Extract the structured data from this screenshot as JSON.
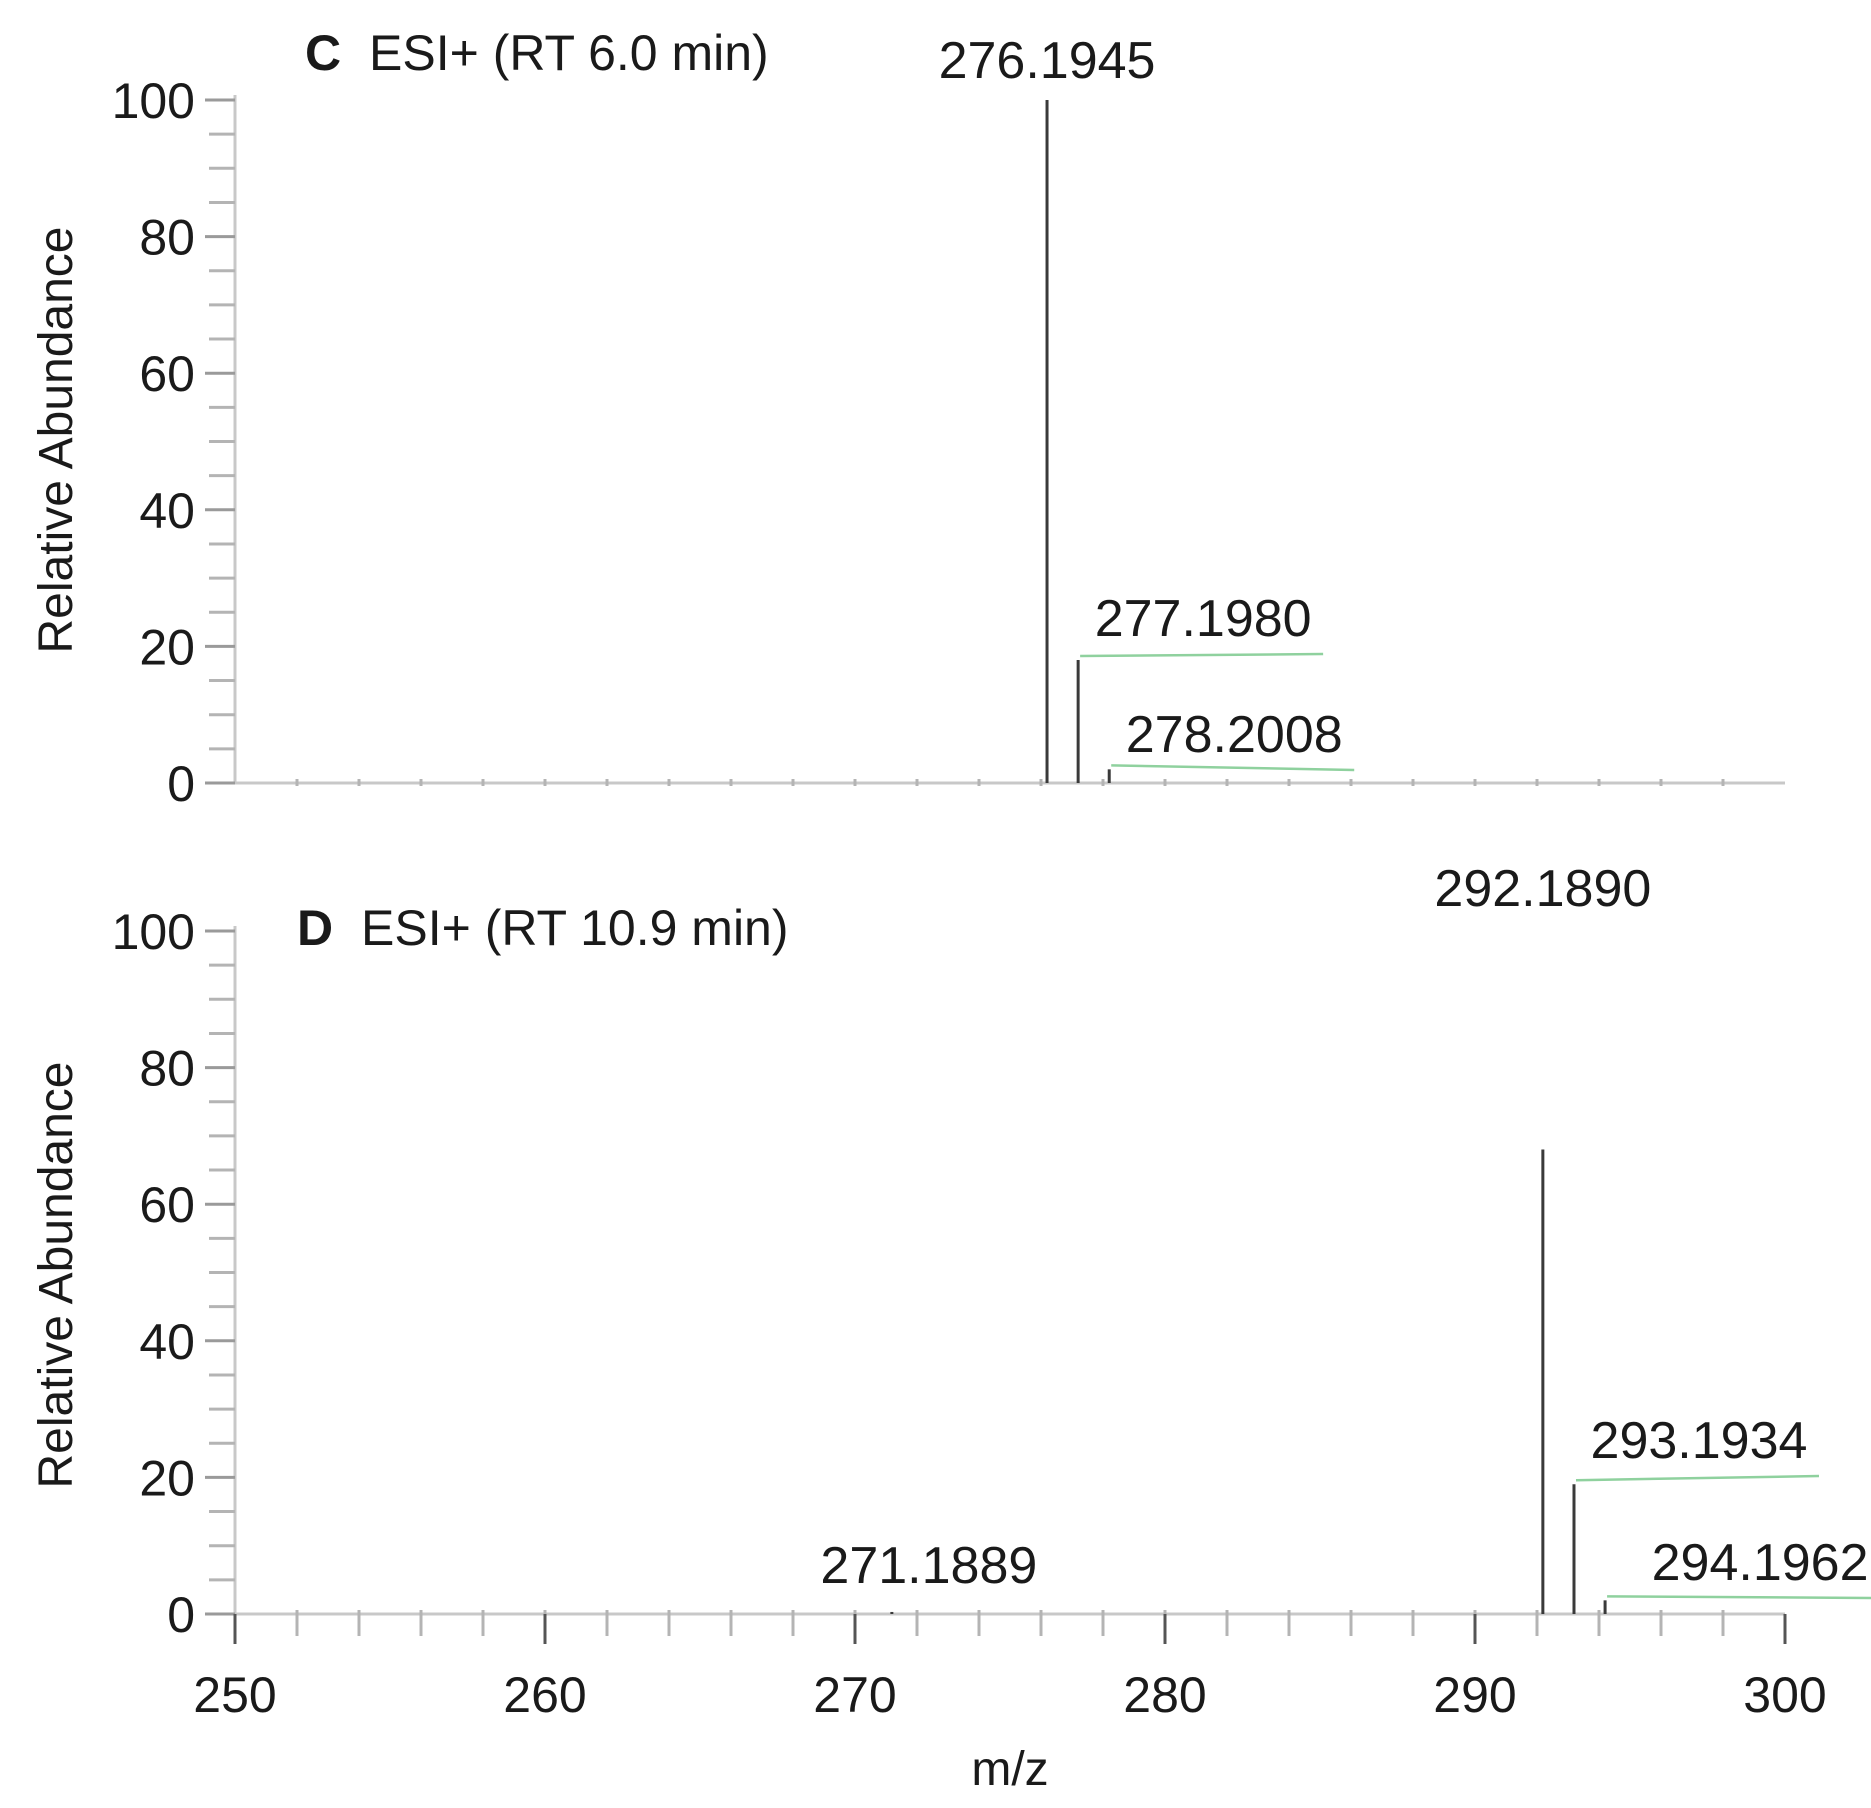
{
  "chart_data": [
    {
      "type": "bar",
      "panel": "C",
      "title": "ESI+ (RT 6.0 min)",
      "xlabel": "",
      "ylabel": "Relative Abundance",
      "xlim": [
        250,
        300
      ],
      "ylim": [
        0,
        100
      ],
      "yticks": [
        0,
        20,
        40,
        60,
        80,
        100
      ],
      "grid": false,
      "peaks": [
        {
          "mz": 276.1945,
          "abundance": 100,
          "label": "276.1945"
        },
        {
          "mz": 277.198,
          "abundance": 18,
          "label": "277.1980"
        },
        {
          "mz": 278.2008,
          "abundance": 2,
          "label": "278.2008"
        }
      ]
    },
    {
      "type": "bar",
      "panel": "D",
      "title": "ESI+ (RT 10.9 min)",
      "xlabel": "m/z",
      "ylabel": "Relative Abundance",
      "xlim": [
        250,
        300
      ],
      "ylim": [
        0,
        100
      ],
      "yticks": [
        0,
        20,
        40,
        60,
        80,
        100
      ],
      "xticks": [
        250,
        260,
        270,
        280,
        290,
        300
      ],
      "grid": false,
      "peaks": [
        {
          "mz": 292.189,
          "abundance": 68,
          "label": "292.1890"
        },
        {
          "mz": 293.1934,
          "abundance": 19,
          "label": "293.1934"
        },
        {
          "mz": 294.1962,
          "abundance": 2,
          "label": "294.1962"
        },
        {
          "mz": 271.1889,
          "abundance": 0.3,
          "label": "271.1889"
        }
      ]
    }
  ]
}
